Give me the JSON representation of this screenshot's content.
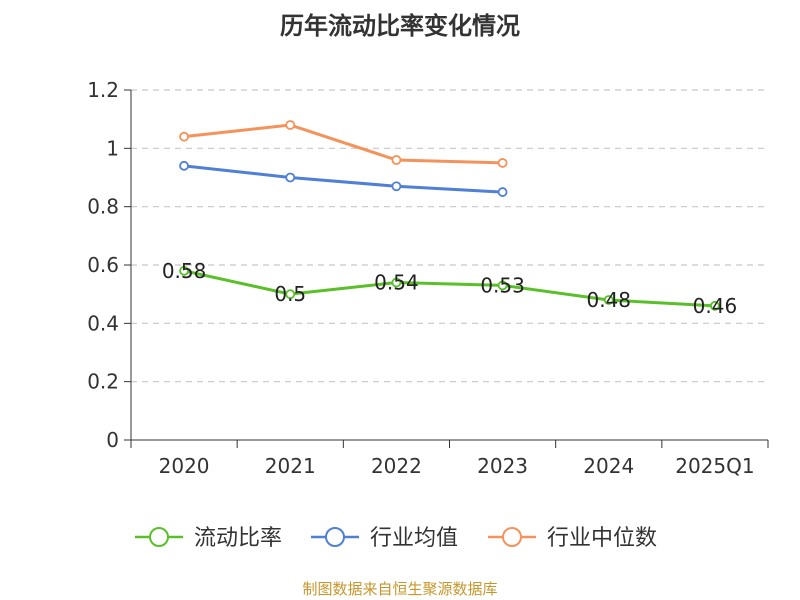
{
  "chart_data": {
    "type": "line",
    "title": "历年流动比率变化情况",
    "categories": [
      "2020",
      "2021",
      "2022",
      "2023",
      "2024",
      "2025Q1"
    ],
    "ylim": [
      0,
      1.2
    ],
    "yticks": [
      "0",
      "0.2",
      "0.4",
      "0.6",
      "0.8",
      "1",
      "1.2"
    ],
    "grid": true,
    "legend_position": "bottom",
    "series": [
      {
        "name": "流动比率",
        "color": "#5ac02a",
        "values": [
          0.58,
          0.5,
          0.54,
          0.53,
          0.48,
          0.46
        ],
        "labels": [
          "0.58",
          "0.5",
          "0.54",
          "0.53",
          "0.48",
          "0.46"
        ]
      },
      {
        "name": "行业均值",
        "color": "#4f7fd6",
        "values": [
          0.94,
          0.9,
          0.87,
          0.85,
          null,
          null
        ]
      },
      {
        "name": "行业中位数",
        "color": "#f5925a",
        "values": [
          1.04,
          1.08,
          0.96,
          0.95,
          null,
          null
        ]
      }
    ]
  },
  "footer": {
    "source": "制图数据来自恒生聚源数据库"
  }
}
